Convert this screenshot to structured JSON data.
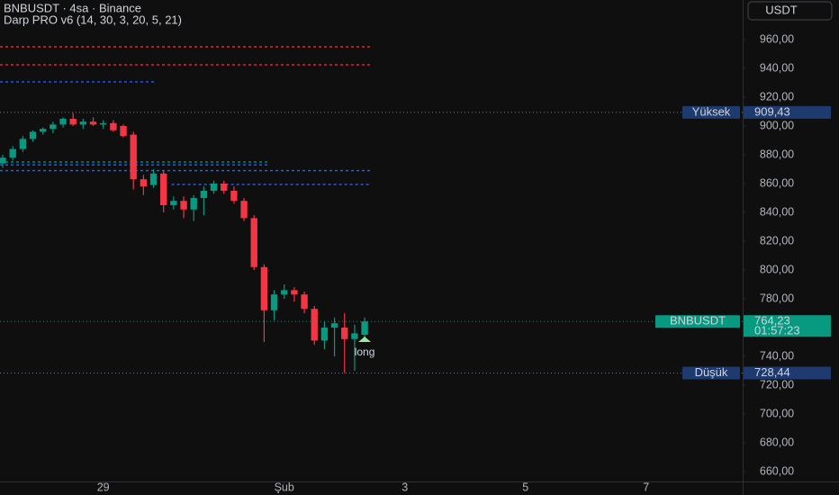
{
  "chart_data": {
    "type": "candlestick",
    "title": "BNBUSDT · 4sa · Binance",
    "subtitle": "Darp PRO v6 (14, 30, 3, 20, 5, 21)",
    "currency": "USDT",
    "up_color": "#089981",
    "down_color": "#f23645",
    "x": [
      0,
      1,
      2,
      3,
      4,
      5,
      6,
      7,
      8,
      9,
      10,
      11,
      12,
      13,
      14,
      15,
      16,
      17,
      18,
      19,
      20,
      21,
      22,
      23,
      24,
      25,
      26,
      27,
      28,
      29,
      30,
      31,
      32,
      33,
      34,
      35,
      36
    ],
    "open": [
      874,
      878,
      884,
      891,
      896,
      898,
      901,
      905,
      901,
      903,
      901,
      902,
      900,
      894,
      863,
      859,
      867,
      845,
      848,
      842,
      850,
      855,
      860,
      855,
      848,
      836,
      802,
      772,
      783,
      786,
      783,
      773,
      751,
      760,
      760,
      752,
      755
    ],
    "high": [
      880,
      886,
      893,
      897,
      899,
      903,
      906,
      909,
      905,
      906,
      904,
      904,
      901,
      896,
      866,
      870,
      869,
      851,
      851,
      852,
      858,
      862,
      862,
      858,
      850,
      838,
      804,
      786,
      790,
      788,
      785,
      775,
      764,
      767,
      770,
      762,
      767
    ],
    "low": [
      871,
      876,
      882,
      889,
      894,
      895,
      899,
      900,
      898,
      900,
      898,
      896,
      892,
      856,
      852,
      857,
      840,
      842,
      836,
      834,
      838,
      853,
      853,
      846,
      834,
      800,
      750,
      765,
      780,
      778,
      770,
      748,
      745,
      740,
      728.44,
      730,
      752
    ],
    "close": [
      878,
      884,
      891,
      896,
      898,
      901,
      905,
      901,
      903,
      901,
      902,
      897,
      893,
      863,
      858,
      867,
      845,
      848,
      842,
      850,
      855,
      860,
      855,
      848,
      836,
      802,
      772,
      783,
      786,
      783,
      773,
      751,
      760,
      763,
      752,
      756,
      764.23
    ],
    "xlim": [
      -0.27,
      73.6
    ],
    "xticks": [
      {
        "value": 10,
        "label": "29"
      },
      {
        "value": 28,
        "label": "Şub"
      },
      {
        "value": 40,
        "label": "3"
      },
      {
        "value": 52,
        "label": "5"
      },
      {
        "value": 64,
        "label": "7"
      }
    ],
    "ylim": [
      653.1,
      987.5
    ],
    "yticks": [
      {
        "value": 660,
        "label": "660,00"
      },
      {
        "value": 680,
        "label": "680,00"
      },
      {
        "value": 700,
        "label": "700,00"
      },
      {
        "value": 720,
        "label": "720,00"
      },
      {
        "value": 740,
        "label": "740,00"
      },
      {
        "value": 760,
        "label": "760,00"
      },
      {
        "value": 780,
        "label": "780,00"
      },
      {
        "value": 800,
        "label": "800,00"
      },
      {
        "value": 820,
        "label": "820,00"
      },
      {
        "value": 840,
        "label": "840,00"
      },
      {
        "value": 860,
        "label": "860,00"
      },
      {
        "value": 880,
        "label": "880,00"
      },
      {
        "value": 900,
        "label": "900,00"
      },
      {
        "value": 920,
        "label": "920,00"
      },
      {
        "value": 940,
        "label": "940,00"
      },
      {
        "value": 960,
        "label": "960,00"
      }
    ],
    "levels": [
      {
        "value": 955,
        "color": "#f23645",
        "x": [
          -0.27,
          36.6
        ]
      },
      {
        "value": 942.5,
        "color": "#f23645",
        "x": [
          -0.27,
          36.6
        ]
      },
      {
        "value": 930.6,
        "color": "#2962ff",
        "x": [
          -0.27,
          15.1
        ]
      },
      {
        "value": 875,
        "color": "#089981",
        "x": [
          -0.27,
          26.4
        ]
      },
      {
        "value": 873,
        "color": "#2962ff",
        "x": [
          -0.27,
          26.4
        ]
      },
      {
        "value": 869,
        "color": "#2962ff",
        "x": [
          -0.27,
          36.6
        ]
      },
      {
        "value": 859.4,
        "color": "#2962ff",
        "x": [
          16.8,
          36.6
        ]
      }
    ],
    "markers": [
      {
        "name": "Yüksek",
        "value": 909.43,
        "label": "909,43",
        "color": "#1e3a6e",
        "line": "#787b86"
      },
      {
        "name": "BNBUSDT",
        "value": 764.23,
        "label": "764,23",
        "sub": "01:57:23",
        "color": "#089981",
        "line": "#089981"
      },
      {
        "name": "Düşük",
        "value": 728.44,
        "label": "728,44",
        "color": "#1e3a6e",
        "line": "#787b86"
      }
    ],
    "signal": {
      "text": "long",
      "x": 36,
      "value": 750
    }
  }
}
